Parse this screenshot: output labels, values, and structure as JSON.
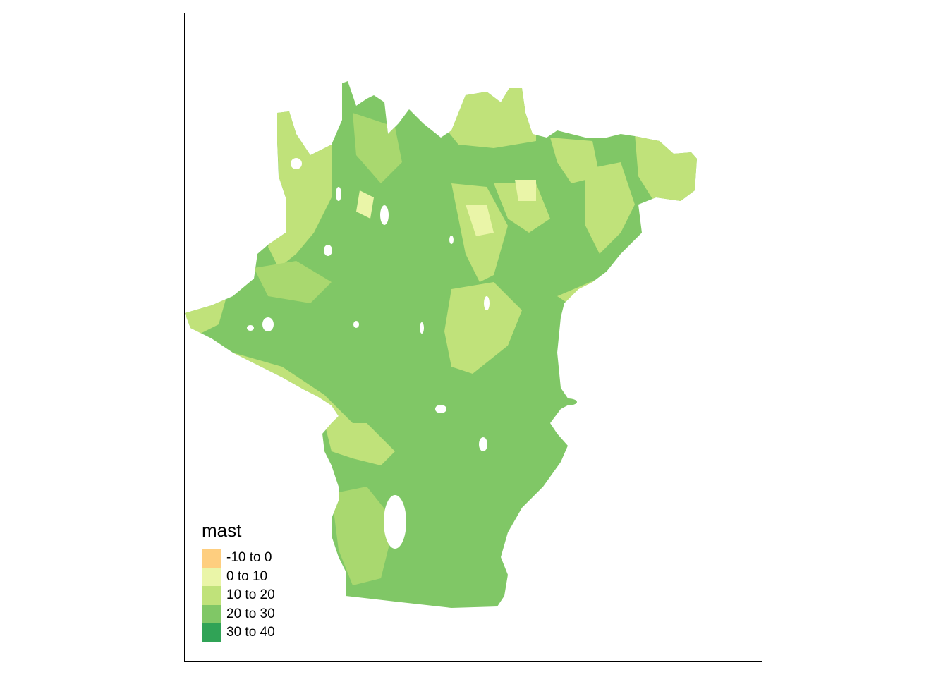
{
  "map": {
    "variable": "mast",
    "fill_range": "20 to 30"
  },
  "legend": {
    "title": "mast",
    "items": [
      {
        "label": "-10 to 0",
        "color": "#FECE7F"
      },
      {
        "label": "0 to 10",
        "color": "#EAF5A8"
      },
      {
        "label": "10 to 20",
        "color": "#C0E27A"
      },
      {
        "label": "20 to 30",
        "color": "#80C766"
      },
      {
        "label": "30 to 40",
        "color": "#30A356"
      }
    ]
  }
}
